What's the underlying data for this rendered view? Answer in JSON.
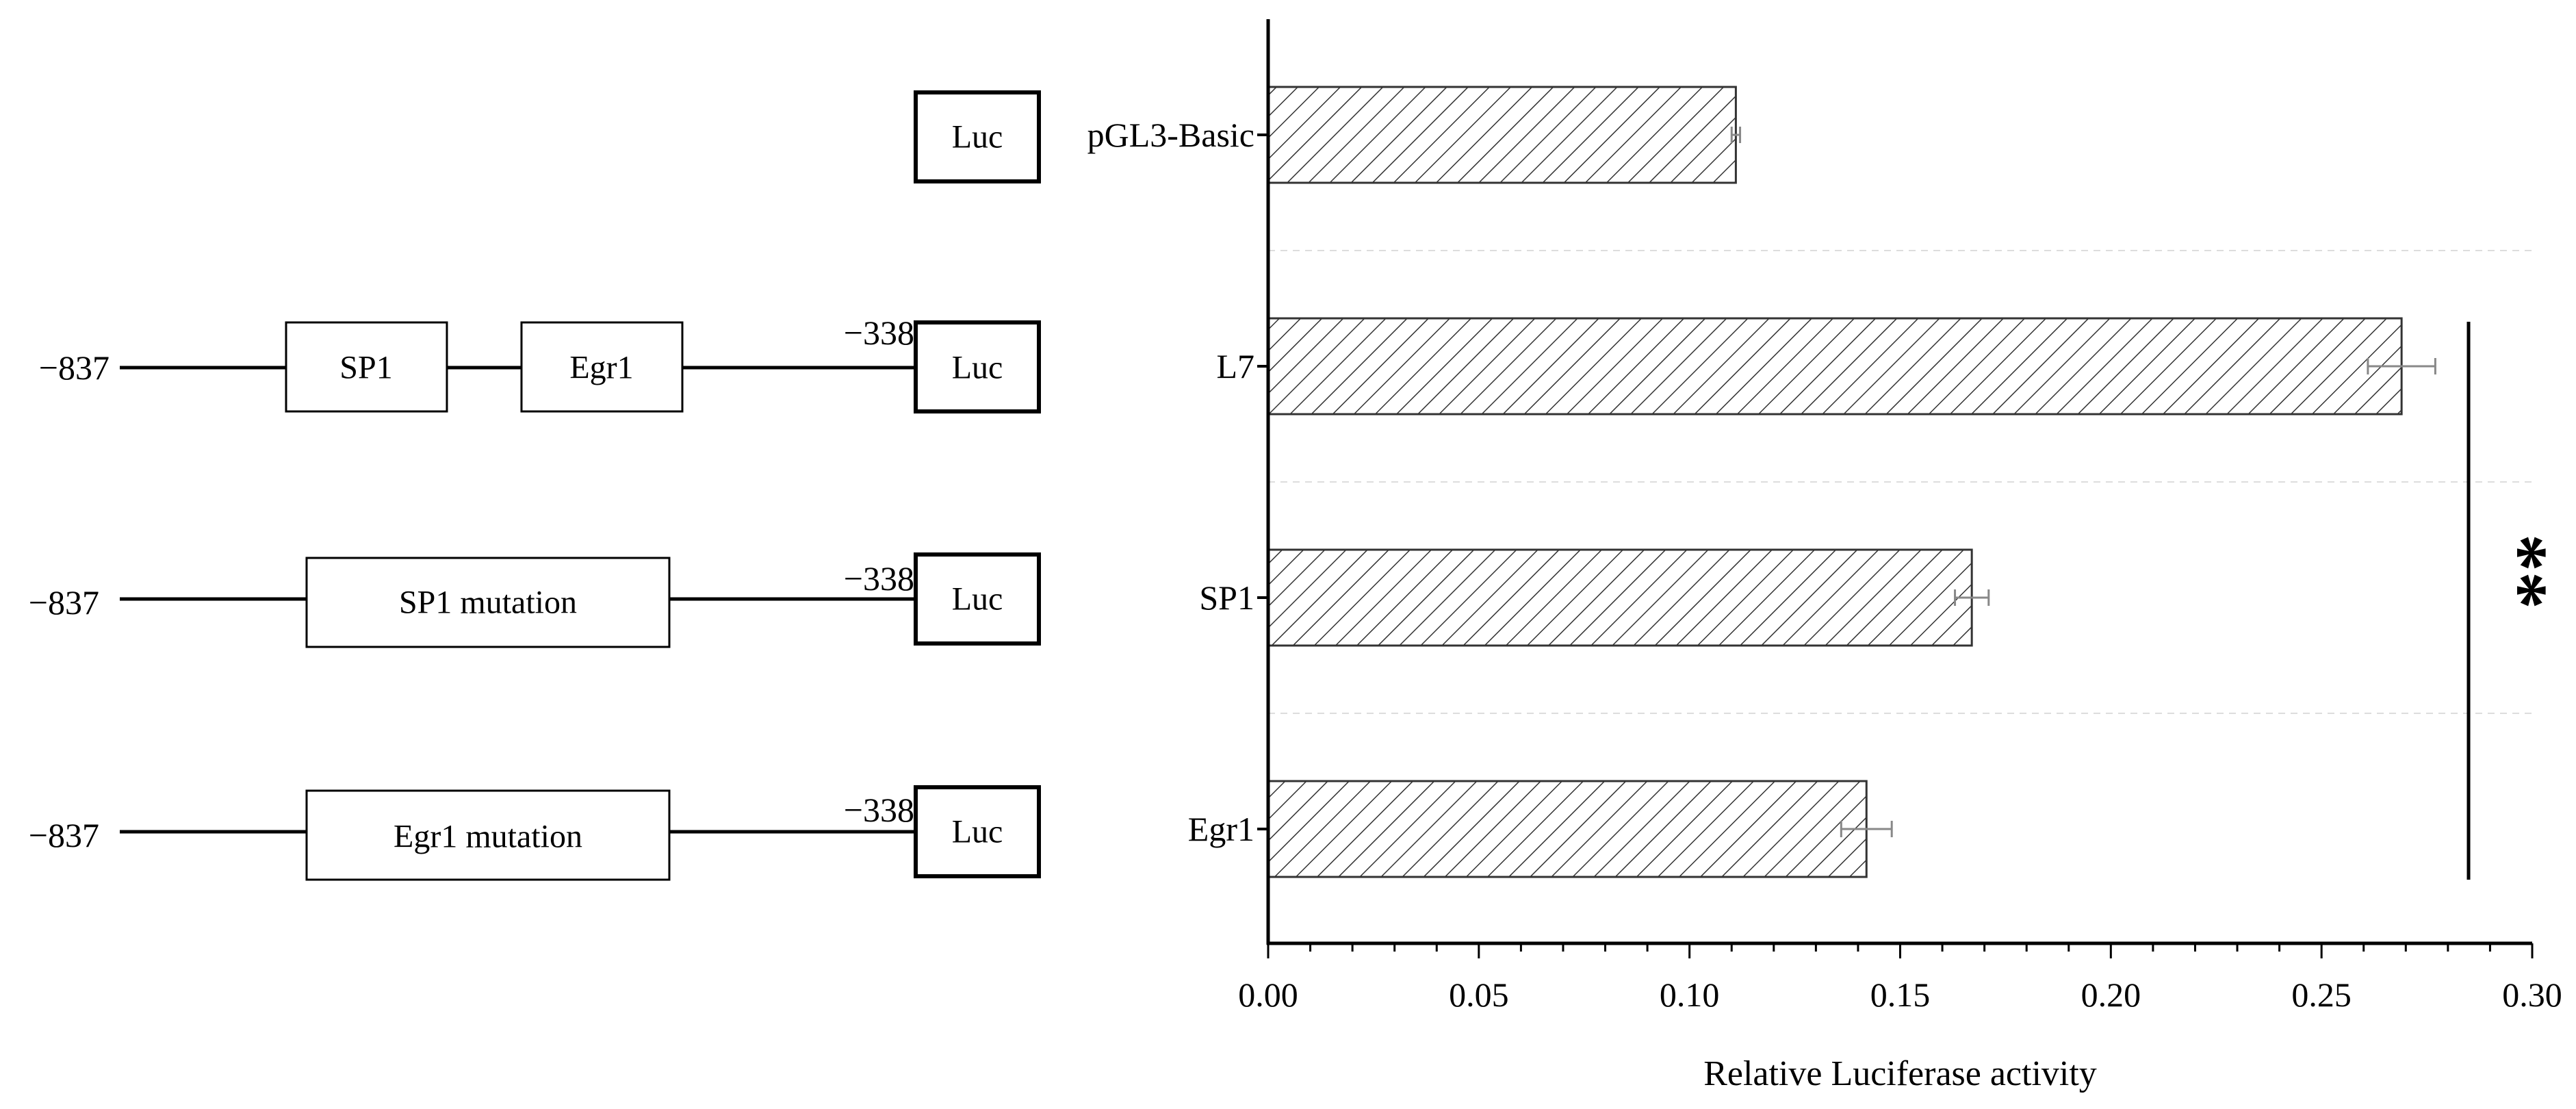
{
  "constructs": [
    {
      "start_label": "−837",
      "end_label": "−338",
      "elements": [
        "SP1",
        "Egr1"
      ],
      "reporter": "Luc"
    },
    {
      "start_label": "−837",
      "end_label": "−338",
      "elements": [
        "SP1 mutation"
      ],
      "reporter": "Luc"
    },
    {
      "start_label": "−837",
      "end_label": "−338",
      "elements": [
        "Egr1 mutation"
      ],
      "reporter": "Luc"
    }
  ],
  "basic_reporter": "Luc",
  "significance": "**",
  "chart_data": {
    "type": "bar",
    "orientation": "horizontal",
    "categories": [
      "pGL3-Basic",
      "L7",
      "SP1",
      "Egr1"
    ],
    "values": [
      0.111,
      0.269,
      0.167,
      0.142
    ],
    "errors": [
      0.001,
      0.008,
      0.004,
      0.006
    ],
    "xlabel": "Relative Luciferase activity",
    "xlim": [
      0,
      0.3
    ],
    "xticks": [
      "0.00",
      "0.05",
      "0.10",
      "0.15",
      "0.20",
      "0.25",
      "0.30"
    ],
    "minor_ticks_per_major": 5,
    "bar_fill": "diagonal-hatch",
    "grid": "horizontal dashed separators",
    "significance_label": "**",
    "colors": {
      "bar_stroke": "#333333",
      "error_bar": "#888888",
      "grid": "#dddddd",
      "axis": "#000000"
    }
  }
}
